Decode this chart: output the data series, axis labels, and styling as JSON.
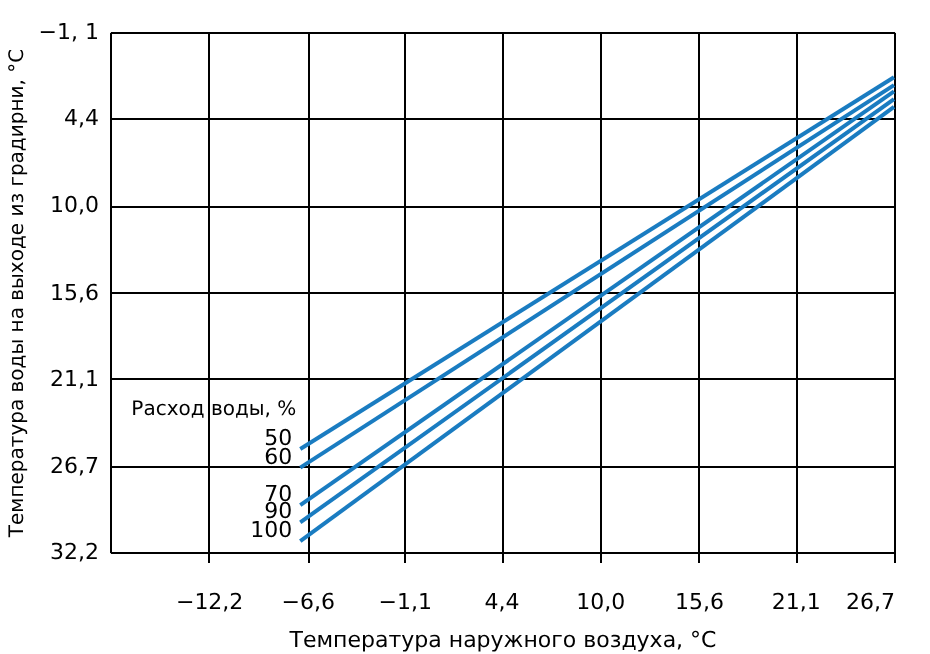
{
  "chart_data": {
    "type": "line",
    "xlabel": "Температура наружного воздуха, °C",
    "ylabel": "Температура воды на выходе из градирни, °C",
    "legend_title": "Расход воды, %",
    "x": [
      -7.0,
      26.7
    ],
    "series": [
      {
        "name": "50",
        "color": "#1a7cc1",
        "values": [
          25.6,
          1.8
        ]
      },
      {
        "name": "60",
        "color": "#1a7cc1",
        "values": [
          26.8,
          2.3
        ]
      },
      {
        "name": "70",
        "color": "#1a7cc1",
        "values": [
          29.2,
          2.7
        ]
      },
      {
        "name": "90",
        "color": "#1a7cc1",
        "values": [
          30.3,
          3.2
        ]
      },
      {
        "name": "100",
        "color": "#1a7cc1",
        "values": [
          31.5,
          3.7
        ]
      }
    ],
    "xlim": [
      -17.8,
      26.7
    ],
    "ylim": [
      32.2,
      -1.1
    ],
    "xticks": [
      {
        "value": -12.2,
        "label": "−12,2"
      },
      {
        "value": -6.6,
        "label": "−6,6"
      },
      {
        "value": -1.1,
        "label": "−1,1"
      },
      {
        "value": 4.4,
        "label": "4,4"
      },
      {
        "value": 10.0,
        "label": "10,0"
      },
      {
        "value": 15.6,
        "label": "15,6"
      },
      {
        "value": 21.1,
        "label": "21,1"
      },
      {
        "value": 26.7,
        "label": "26,7"
      }
    ],
    "yticks": [
      {
        "value": -1.1,
        "label": "−1, 1"
      },
      {
        "value": 4.4,
        "label": "4,4"
      },
      {
        "value": 10.0,
        "label": "10,0"
      },
      {
        "value": 15.6,
        "label": "15,6"
      },
      {
        "value": 21.1,
        "label": "21,1"
      },
      {
        "value": 26.7,
        "label": "26,7"
      },
      {
        "value": 32.2,
        "label": "32,2"
      }
    ],
    "grid": true,
    "legend": false,
    "line_style": "solid",
    "marker": "none"
  }
}
